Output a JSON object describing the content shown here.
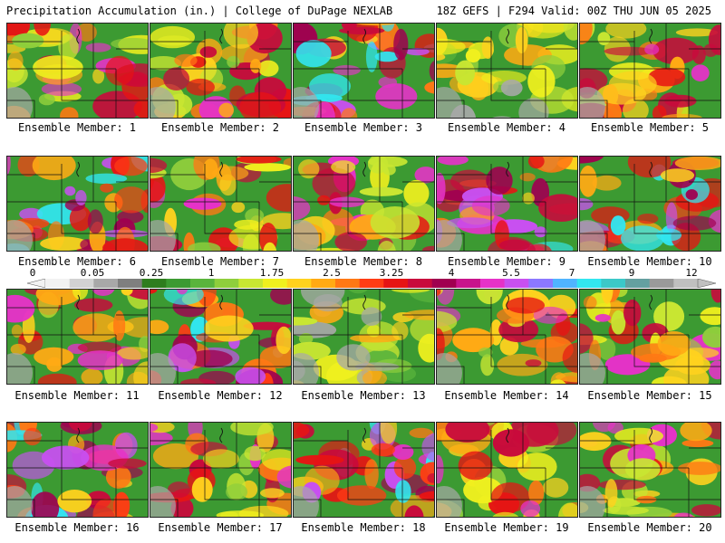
{
  "header": {
    "left": "Precipitation Accumulation (in.) | College of DuPage NEXLAB",
    "right": "18Z GEFS | F294 Valid: 00Z THU JUN 05 2025"
  },
  "colorbar": {
    "labels": [
      "0",
      "0.05",
      "0.25",
      "1",
      "1.75",
      "2.5",
      "3.25",
      "4",
      "5.5",
      "7",
      "9",
      "12"
    ],
    "colors": [
      "#f2f2f2",
      "#d2d2d2",
      "#a8a8a8",
      "#7f7f7f",
      "#2e7d1e",
      "#3c9a32",
      "#5ab43c",
      "#8fce3c",
      "#c8e632",
      "#f0f01e",
      "#ffd21e",
      "#ffaa14",
      "#ff7814",
      "#ff3c14",
      "#e61414",
      "#c80a3c",
      "#a00050",
      "#c8148c",
      "#e632c8",
      "#c850f0",
      "#8c78ff",
      "#50b4ff",
      "#32e6f0",
      "#3cc8c8",
      "#64a0a0",
      "#9a9a9a",
      "#c0c0c0"
    ]
  },
  "members": [
    {
      "caption": "Ensemble Member: 1",
      "tone": 2
    },
    {
      "caption": "Ensemble Member: 2",
      "tone": 2
    },
    {
      "caption": "Ensemble Member: 3",
      "tone": 3
    },
    {
      "caption": "Ensemble Member: 4",
      "tone": 1
    },
    {
      "caption": "Ensemble Member: 5",
      "tone": 2
    },
    {
      "caption": "Ensemble Member: 6",
      "tone": 3
    },
    {
      "caption": "Ensemble Member: 7",
      "tone": 2
    },
    {
      "caption": "Ensemble Member: 8",
      "tone": 2
    },
    {
      "caption": "Ensemble Member: 9",
      "tone": 3
    },
    {
      "caption": "Ensemble Member: 10",
      "tone": 3
    },
    {
      "caption": "Ensemble Member: 11",
      "tone": 2
    },
    {
      "caption": "Ensemble Member: 12",
      "tone": 3
    },
    {
      "caption": "Ensemble Member: 13",
      "tone": 1
    },
    {
      "caption": "Ensemble Member: 14",
      "tone": 2
    },
    {
      "caption": "Ensemble Member: 15",
      "tone": 2
    },
    {
      "caption": "Ensemble Member: 16",
      "tone": 3
    },
    {
      "caption": "Ensemble Member: 17",
      "tone": 2
    },
    {
      "caption": "Ensemble Member: 18",
      "tone": 3
    },
    {
      "caption": "Ensemble Member: 19",
      "tone": 2
    },
    {
      "caption": "Ensemble Member: 20",
      "tone": 2
    }
  ]
}
